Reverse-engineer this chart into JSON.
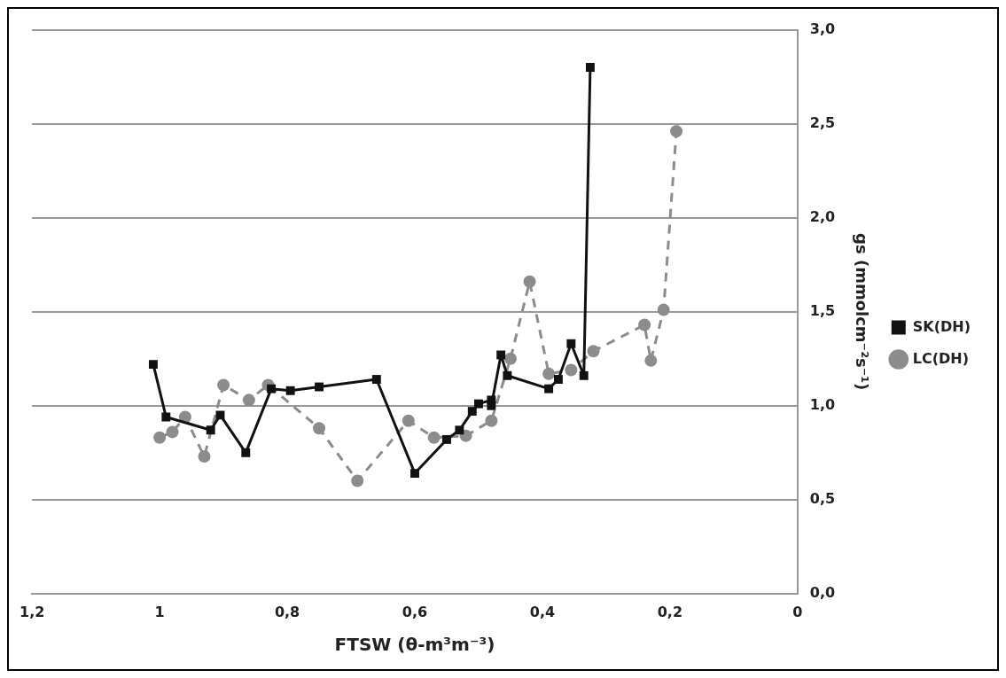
{
  "chart_data": {
    "type": "line",
    "xlabel": "FTSW (θ-m³m⁻³)",
    "ylabel": "gs (mmolcm⁻²s⁻¹)",
    "xlim": [
      1.2,
      0
    ],
    "xticks": [
      {
        "value": 1.2,
        "label": "1,2"
      },
      {
        "value": 1,
        "label": "1"
      },
      {
        "value": 0.8,
        "label": "0,8"
      },
      {
        "value": 0.6,
        "label": "0,6"
      },
      {
        "value": 0.4,
        "label": "0,4"
      },
      {
        "value": 0.2,
        "label": "0,2"
      },
      {
        "value": 0,
        "label": "0"
      }
    ],
    "ylim": [
      0,
      3
    ],
    "yticks": [
      {
        "value": 0,
        "label": "0,0"
      },
      {
        "value": 0.5,
        "label": "0,5"
      },
      {
        "value": 1,
        "label": "1,0"
      },
      {
        "value": 1.5,
        "label": "1,5"
      },
      {
        "value": 2,
        "label": "2,0"
      },
      {
        "value": 2.5,
        "label": "2,5"
      },
      {
        "value": 3,
        "label": "3,0"
      }
    ],
    "grid": "y",
    "legend": "right",
    "series": [
      {
        "name": "LC(DH)",
        "color": "#8c8c8c",
        "marker": "circle",
        "line_style": "dashed",
        "x": [
          1.0,
          0.98,
          0.96,
          0.93,
          0.9,
          0.86,
          0.83,
          0.75,
          0.69,
          0.61,
          0.57,
          0.52,
          0.48,
          0.45,
          0.42,
          0.39,
          0.355,
          0.32,
          0.24,
          0.23,
          0.21,
          0.19
        ],
        "values": [
          0.83,
          0.86,
          0.94,
          0.73,
          1.11,
          1.03,
          1.11,
          0.88,
          0.6,
          0.92,
          0.83,
          0.84,
          0.92,
          1.25,
          1.66,
          1.17,
          1.19,
          1.29,
          1.43,
          1.24,
          1.51,
          2.46
        ]
      },
      {
        "name": "SK(DH)",
        "color": "#111111",
        "marker": "square",
        "line_style": "solid",
        "x": [
          1.01,
          0.99,
          0.92,
          0.905,
          0.865,
          0.825,
          0.795,
          0.75,
          0.66,
          0.6,
          0.55,
          0.53,
          0.51,
          0.5,
          0.48,
          0.48,
          0.465,
          0.455,
          0.39,
          0.375,
          0.355,
          0.335,
          0.325
        ],
        "values": [
          1.22,
          0.94,
          0.87,
          0.95,
          0.75,
          1.09,
          1.08,
          1.1,
          1.14,
          0.64,
          0.82,
          0.87,
          0.97,
          1.01,
          1.03,
          1.0,
          1.27,
          1.16,
          1.09,
          1.14,
          1.33,
          1.16,
          2.8
        ]
      }
    ]
  }
}
